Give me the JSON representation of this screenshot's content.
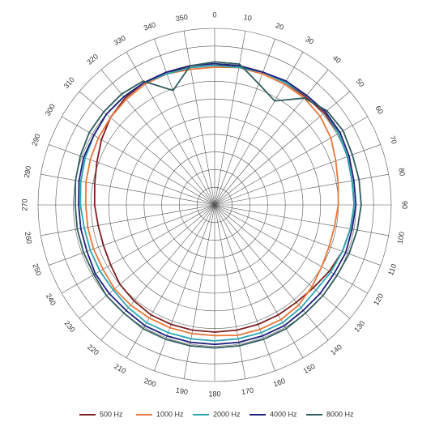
{
  "chart_data": {
    "type": "polar",
    "theta": [
      0,
      10,
      20,
      30,
      40,
      50,
      60,
      70,
      80,
      90,
      100,
      110,
      120,
      130,
      140,
      150,
      160,
      170,
      180,
      190,
      200,
      210,
      220,
      230,
      240,
      250,
      260,
      270,
      280,
      290,
      300,
      310,
      320,
      330,
      340,
      350
    ],
    "thetaticks": [
      0,
      10,
      20,
      30,
      40,
      50,
      60,
      70,
      80,
      90,
      100,
      110,
      120,
      130,
      140,
      150,
      160,
      170,
      180,
      190,
      200,
      210,
      220,
      230,
      240,
      250,
      260,
      270,
      280,
      290,
      300,
      310,
      320,
      330,
      340,
      350
    ],
    "rlim": [
      0,
      10
    ],
    "rticks": [
      1,
      2,
      3,
      4,
      5,
      6,
      7,
      8,
      9,
      10
    ],
    "grid": true,
    "series": [
      {
        "name": "500 Hz",
        "color": "#7b1f24",
        "values": [
          7.9,
          8.0,
          8.0,
          8.0,
          8.0,
          8.1,
          8.1,
          8.0,
          7.9,
          7.9,
          7.8,
          7.7,
          7.5,
          7.3,
          7.2,
          7.2,
          7.2,
          7.2,
          7.2,
          7.2,
          7.2,
          7.2,
          7.1,
          7.0,
          6.8,
          6.7,
          6.7,
          6.8,
          6.9,
          7.1,
          7.4,
          7.7,
          7.9,
          8.0,
          8.0,
          7.9
        ]
      },
      {
        "name": "1000 Hz",
        "color": "#e8773a",
        "values": [
          7.8,
          7.9,
          7.9,
          7.9,
          7.9,
          7.8,
          7.6,
          7.3,
          7.1,
          7.0,
          6.9,
          6.9,
          7.0,
          7.2,
          7.4,
          7.5,
          7.5,
          7.5,
          7.4,
          7.4,
          7.4,
          7.4,
          7.4,
          7.4,
          7.3,
          7.3,
          7.3,
          7.3,
          7.4,
          7.5,
          7.6,
          7.7,
          7.8,
          7.9,
          7.9,
          7.8
        ]
      },
      {
        "name": "2000 Hz",
        "color": "#2aa5b0",
        "values": [
          7.9,
          7.9,
          8.0,
          8.0,
          8.1,
          8.2,
          8.1,
          8.0,
          7.9,
          7.9,
          7.8,
          7.7,
          7.6,
          7.5,
          7.6,
          7.7,
          7.7,
          7.7,
          7.7,
          7.7,
          7.7,
          7.7,
          7.6,
          7.5,
          7.5,
          7.5,
          7.5,
          7.6,
          7.7,
          7.8,
          7.9,
          8.0,
          8.0,
          8.0,
          7.9,
          7.9
        ]
      },
      {
        "name": "4000 Hz",
        "color": "#1d1f7a",
        "values": [
          8.0,
          8.0,
          8.0,
          8.1,
          8.1,
          8.2,
          8.2,
          8.1,
          8.0,
          8.0,
          7.9,
          7.9,
          7.8,
          7.8,
          7.8,
          7.9,
          7.9,
          7.9,
          7.9,
          7.9,
          7.9,
          7.9,
          7.8,
          7.8,
          7.8,
          7.7,
          7.7,
          7.7,
          7.8,
          7.9,
          7.9,
          8.0,
          8.0,
          8.0,
          8.0,
          8.0
        ]
      },
      {
        "name": "8000 Hz",
        "color": "#2f5c5e",
        "values": [
          8.1,
          8.1,
          7.3,
          6.8,
          7.9,
          8.3,
          8.4,
          8.3,
          8.3,
          8.3,
          8.2,
          8.1,
          8.0,
          8.0,
          8.0,
          8.1,
          8.1,
          8.1,
          8.1,
          8.1,
          8.1,
          8.1,
          8.0,
          8.0,
          7.9,
          7.9,
          7.9,
          7.9,
          8.0,
          8.1,
          8.2,
          8.2,
          8.2,
          8.1,
          6.9,
          8.0
        ]
      }
    ]
  }
}
